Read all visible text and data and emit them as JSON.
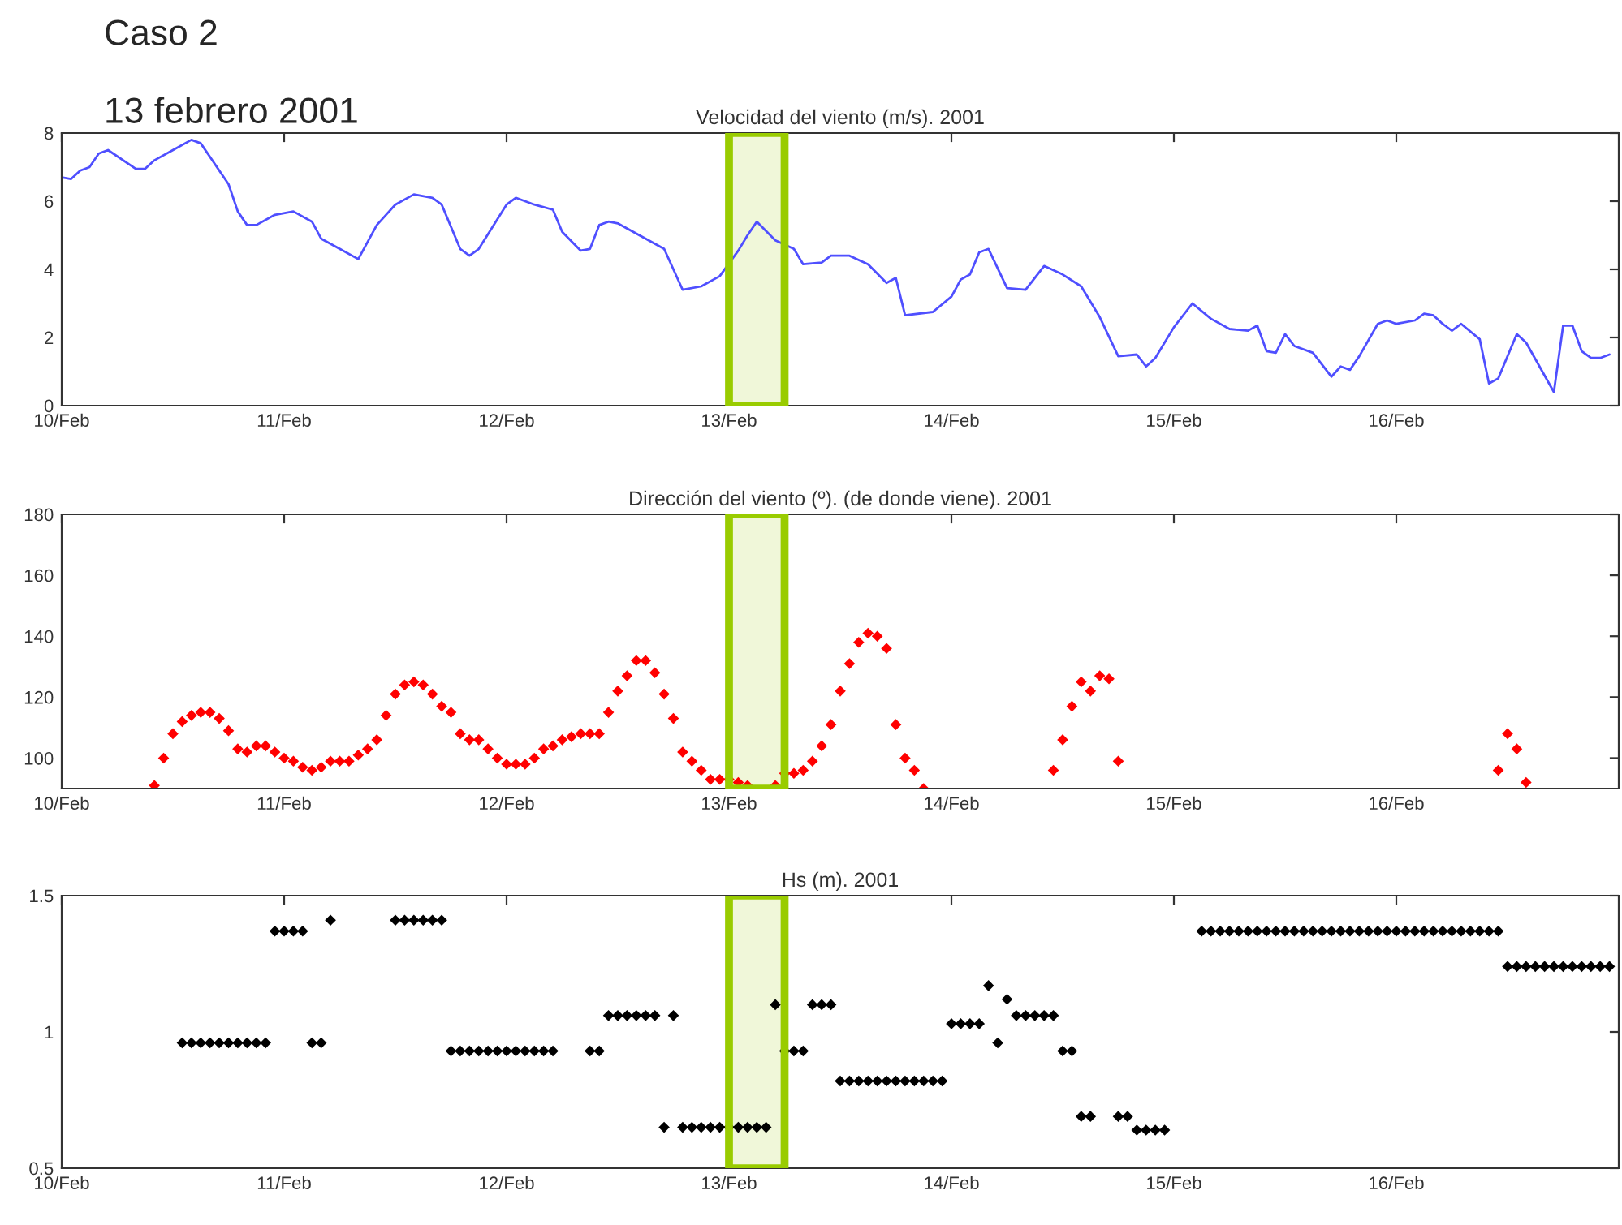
{
  "chart_data": [
    {
      "type": "line",
      "title": "Velocidad del viento (m/s). 2001",
      "annotations": [
        "Caso 2",
        "13 febrero 2001"
      ],
      "x": [
        "2001-02-10T00:00",
        "2001-02-10T01:00",
        "2001-02-10T02:00",
        "2001-02-10T03:00",
        "2001-02-10T04:00",
        "2001-02-10T05:00",
        "2001-02-10T08:00",
        "2001-02-10T09:00",
        "2001-02-10T10:00",
        "2001-02-10T12:00",
        "2001-02-10T14:00",
        "2001-02-10T15:00",
        "2001-02-10T18:00",
        "2001-02-10T19:00",
        "2001-02-10T20:00",
        "2001-02-10T21:00",
        "2001-02-10T23:00",
        "2001-02-11T01:00",
        "2001-02-11T03:00",
        "2001-02-11T04:00",
        "2001-02-11T06:00",
        "2001-02-11T08:00",
        "2001-02-11T10:00",
        "2001-02-11T12:00",
        "2001-02-11T14:00",
        "2001-02-11T16:00",
        "2001-02-11T17:00",
        "2001-02-11T19:00",
        "2001-02-11T20:00",
        "2001-02-11T21:00",
        "2001-02-12T00:00",
        "2001-02-12T01:00",
        "2001-02-12T03:00",
        "2001-02-12T05:00",
        "2001-02-12T06:00",
        "2001-02-12T08:00",
        "2001-02-12T09:00",
        "2001-02-12T10:00",
        "2001-02-12T11:00",
        "2001-02-12T12:00",
        "2001-02-12T17:00",
        "2001-02-12T19:00",
        "2001-02-12T21:00",
        "2001-02-12T23:00",
        "2001-02-13T01:00",
        "2001-02-13T02:00",
        "2001-02-13T03:00",
        "2001-02-13T05:00",
        "2001-02-13T07:00",
        "2001-02-13T08:00",
        "2001-02-13T10:00",
        "2001-02-13T11:00",
        "2001-02-13T13:00",
        "2001-02-13T15:00",
        "2001-02-13T17:00",
        "2001-02-13T18:00",
        "2001-02-13T19:00",
        "2001-02-13T22:00",
        "2001-02-14T00:00",
        "2001-02-14T01:00",
        "2001-02-14T02:00",
        "2001-02-14T03:00",
        "2001-02-14T04:00",
        "2001-02-14T06:00",
        "2001-02-14T08:00",
        "2001-02-14T10:00",
        "2001-02-14T12:00",
        "2001-02-14T14:00",
        "2001-02-14T16:00",
        "2001-02-14T18:00",
        "2001-02-14T20:00",
        "2001-02-14T21:00",
        "2001-02-14T22:00",
        "2001-02-15T00:00",
        "2001-02-15T02:00",
        "2001-02-15T04:00",
        "2001-02-15T06:00",
        "2001-02-15T08:00",
        "2001-02-15T09:00",
        "2001-02-15T10:00",
        "2001-02-15T11:00",
        "2001-02-15T12:00",
        "2001-02-15T13:00",
        "2001-02-15T15:00",
        "2001-02-15T16:00",
        "2001-02-15T17:00",
        "2001-02-15T18:00",
        "2001-02-15T19:00",
        "2001-02-15T20:00",
        "2001-02-15T22:00",
        "2001-02-15T23:00",
        "2001-02-16T00:00",
        "2001-02-16T02:00",
        "2001-02-16T03:00",
        "2001-02-16T04:00",
        "2001-02-16T05:00",
        "2001-02-16T06:00",
        "2001-02-16T07:00",
        "2001-02-16T09:00",
        "2001-02-16T10:00",
        "2001-02-16T11:00",
        "2001-02-16T13:00",
        "2001-02-16T14:00",
        "2001-02-16T17:00",
        "2001-02-16T18:00",
        "2001-02-16T19:00",
        "2001-02-16T20:00",
        "2001-02-16T21:00",
        "2001-02-16T22:00",
        "2001-02-16T23:00"
      ],
      "series": [
        {
          "color": "#4f4fff",
          "values": [
            6.7,
            6.65,
            6.9,
            7.0,
            7.4,
            7.5,
            6.95,
            6.95,
            7.2,
            7.5,
            7.8,
            7.7,
            6.5,
            5.7,
            5.3,
            5.3,
            5.6,
            5.7,
            5.4,
            4.9,
            4.6,
            4.3,
            5.3,
            5.9,
            6.2,
            6.1,
            5.9,
            4.6,
            4.4,
            4.6,
            5.9,
            6.1,
            5.9,
            5.75,
            5.1,
            4.55,
            4.6,
            5.3,
            5.4,
            5.35,
            4.6,
            3.4,
            3.5,
            3.8,
            4.55,
            5.0,
            5.4,
            4.85,
            4.6,
            4.15,
            4.2,
            4.4,
            4.4,
            4.15,
            3.6,
            3.75,
            2.65,
            2.75,
            3.2,
            3.7,
            3.85,
            4.5,
            4.6,
            3.45,
            3.4,
            4.1,
            3.85,
            3.5,
            2.6,
            1.45,
            1.5,
            1.15,
            1.4,
            2.3,
            3.0,
            2.55,
            2.25,
            2.2,
            2.35,
            1.6,
            1.55,
            2.1,
            1.75,
            1.55,
            1.2,
            0.85,
            1.15,
            1.05,
            1.45,
            2.4,
            2.5,
            2.4,
            2.5,
            2.7,
            2.65,
            2.4,
            2.2,
            2.4,
            1.95,
            0.65,
            0.8,
            2.1,
            1.85,
            0.4,
            2.35,
            2.35,
            1.6,
            1.4,
            1.4,
            1.5
          ]
        }
      ],
      "xlim": [
        "2001-02-10T00:00",
        "2001-02-17T00:00"
      ],
      "xticks": [
        {
          "value": "2001-02-10",
          "label": "10/Feb"
        },
        {
          "value": "2001-02-11",
          "label": "11/Feb"
        },
        {
          "value": "2001-02-12",
          "label": "12/Feb"
        },
        {
          "value": "2001-02-13",
          "label": "13/Feb"
        },
        {
          "value": "2001-02-14",
          "label": "14/Feb"
        },
        {
          "value": "2001-02-15",
          "label": "15/Feb"
        },
        {
          "value": "2001-02-16",
          "label": "16/Feb"
        }
      ],
      "ylim": [
        0,
        8
      ],
      "yticks": [
        0,
        2,
        4,
        6,
        8
      ],
      "grid": false,
      "legend": false,
      "line_style": "solid",
      "bands": [
        {
          "axis": "x",
          "from": "2001-02-13T00:00",
          "to": "2001-02-13T06:00",
          "color": "#99cc00"
        }
      ]
    },
    {
      "type": "scatter",
      "title": "Dirección del viento (º). (de donde viene). 2001",
      "marker": "diamond",
      "x": [
        "2001-02-10T10:00",
        "2001-02-10T11:00",
        "2001-02-10T12:00",
        "2001-02-10T13:00",
        "2001-02-10T14:00",
        "2001-02-10T15:00",
        "2001-02-10T16:00",
        "2001-02-10T17:00",
        "2001-02-10T18:00",
        "2001-02-10T19:00",
        "2001-02-10T20:00",
        "2001-02-10T21:00",
        "2001-02-10T22:00",
        "2001-02-10T23:00",
        "2001-02-11T00:00",
        "2001-02-11T01:00",
        "2001-02-11T02:00",
        "2001-02-11T03:00",
        "2001-02-11T04:00",
        "2001-02-11T05:00",
        "2001-02-11T06:00",
        "2001-02-11T07:00",
        "2001-02-11T08:00",
        "2001-02-11T09:00",
        "2001-02-11T10:00",
        "2001-02-11T11:00",
        "2001-02-11T12:00",
        "2001-02-11T13:00",
        "2001-02-11T14:00",
        "2001-02-11T15:00",
        "2001-02-11T16:00",
        "2001-02-11T17:00",
        "2001-02-11T18:00",
        "2001-02-11T19:00",
        "2001-02-11T20:00",
        "2001-02-11T21:00",
        "2001-02-11T22:00",
        "2001-02-11T23:00",
        "2001-02-12T00:00",
        "2001-02-12T01:00",
        "2001-02-12T02:00",
        "2001-02-12T03:00",
        "2001-02-12T04:00",
        "2001-02-12T05:00",
        "2001-02-12T06:00",
        "2001-02-12T07:00",
        "2001-02-12T08:00",
        "2001-02-12T09:00",
        "2001-02-12T10:00",
        "2001-02-12T11:00",
        "2001-02-12T12:00",
        "2001-02-12T13:00",
        "2001-02-12T14:00",
        "2001-02-12T15:00",
        "2001-02-12T16:00",
        "2001-02-12T17:00",
        "2001-02-12T18:00",
        "2001-02-12T19:00",
        "2001-02-12T20:00",
        "2001-02-12T21:00",
        "2001-02-12T22:00",
        "2001-02-12T23:00",
        "2001-02-13T00:00",
        "2001-02-13T01:00",
        "2001-02-13T02:00",
        "2001-02-13T05:00",
        "2001-02-13T06:00",
        "2001-02-13T07:00",
        "2001-02-13T08:00",
        "2001-02-13T09:00",
        "2001-02-13T10:00",
        "2001-02-13T11:00",
        "2001-02-13T12:00",
        "2001-02-13T13:00",
        "2001-02-13T14:00",
        "2001-02-13T15:00",
        "2001-02-13T16:00",
        "2001-02-13T17:00",
        "2001-02-13T18:00",
        "2001-02-13T19:00",
        "2001-02-13T20:00",
        "2001-02-13T21:00",
        "2001-02-14T11:00",
        "2001-02-14T12:00",
        "2001-02-14T13:00",
        "2001-02-14T14:00",
        "2001-02-14T15:00",
        "2001-02-14T16:00",
        "2001-02-14T17:00",
        "2001-02-14T18:00",
        "2001-02-16T11:00",
        "2001-02-16T12:00",
        "2001-02-16T13:00",
        "2001-02-16T14:00"
      ],
      "series": [
        {
          "color": "#ff0000",
          "values": [
            91,
            100,
            108,
            112,
            114,
            115,
            115,
            113,
            109,
            103,
            102,
            104,
            104,
            102,
            100,
            99,
            97,
            96,
            97,
            99,
            99,
            99,
            101,
            103,
            106,
            114,
            121,
            124,
            125,
            124,
            121,
            117,
            115,
            108,
            106,
            106,
            103,
            100,
            98,
            98,
            98,
            100,
            103,
            104,
            106,
            107,
            108,
            108,
            108,
            115,
            122,
            127,
            132,
            132,
            128,
            121,
            113,
            102,
            99,
            96,
            93,
            93,
            93,
            92,
            91,
            91,
            95,
            95,
            96,
            99,
            104,
            111,
            122,
            131,
            138,
            141,
            140,
            136,
            111,
            100,
            96,
            90,
            96,
            106,
            117,
            125,
            122,
            127,
            126,
            99,
            96,
            108,
            103,
            92
          ]
        }
      ],
      "xlim": [
        "2001-02-10T00:00",
        "2001-02-17T00:00"
      ],
      "xticks": [
        {
          "value": "2001-02-10",
          "label": "10/Feb"
        },
        {
          "value": "2001-02-11",
          "label": "11/Feb"
        },
        {
          "value": "2001-02-12",
          "label": "12/Feb"
        },
        {
          "value": "2001-02-13",
          "label": "13/Feb"
        },
        {
          "value": "2001-02-14",
          "label": "14/Feb"
        },
        {
          "value": "2001-02-15",
          "label": "15/Feb"
        },
        {
          "value": "2001-02-16",
          "label": "16/Feb"
        }
      ],
      "ylim": [
        90,
        180
      ],
      "yticks": [
        100,
        120,
        140,
        160,
        180
      ],
      "grid": false,
      "legend": false,
      "bands": [
        {
          "axis": "x",
          "from": "2001-02-13T00:00",
          "to": "2001-02-13T06:00",
          "color": "#99cc00"
        }
      ]
    },
    {
      "type": "scatter",
      "title": "Hs (m). 2001",
      "marker": "diamond",
      "x": [
        "2001-02-10T13:00",
        "2001-02-10T14:00",
        "2001-02-10T15:00",
        "2001-02-10T16:00",
        "2001-02-10T17:00",
        "2001-02-10T18:00",
        "2001-02-10T19:00",
        "2001-02-10T20:00",
        "2001-02-10T21:00",
        "2001-02-10T22:00",
        "2001-02-10T23:00",
        "2001-02-11T00:00",
        "2001-02-11T01:00",
        "2001-02-11T02:00",
        "2001-02-11T03:00",
        "2001-02-11T04:00",
        "2001-02-11T05:00",
        "2001-02-11T12:00",
        "2001-02-11T13:00",
        "2001-02-11T14:00",
        "2001-02-11T15:00",
        "2001-02-11T16:00",
        "2001-02-11T17:00",
        "2001-02-11T18:00",
        "2001-02-11T19:00",
        "2001-02-11T20:00",
        "2001-02-11T21:00",
        "2001-02-11T22:00",
        "2001-02-11T23:00",
        "2001-02-12T00:00",
        "2001-02-12T01:00",
        "2001-02-12T02:00",
        "2001-02-12T03:00",
        "2001-02-12T04:00",
        "2001-02-12T05:00",
        "2001-02-12T09:00",
        "2001-02-12T10:00",
        "2001-02-12T11:00",
        "2001-02-12T12:00",
        "2001-02-12T13:00",
        "2001-02-12T14:00",
        "2001-02-12T15:00",
        "2001-02-12T16:00",
        "2001-02-12T17:00",
        "2001-02-12T18:00",
        "2001-02-12T19:00",
        "2001-02-12T20:00",
        "2001-02-12T21:00",
        "2001-02-12T22:00",
        "2001-02-12T23:00",
        "2001-02-13T00:00",
        "2001-02-13T01:00",
        "2001-02-13T02:00",
        "2001-02-13T03:00",
        "2001-02-13T04:00",
        "2001-02-13T05:00",
        "2001-02-13T06:00",
        "2001-02-13T07:00",
        "2001-02-13T08:00",
        "2001-02-13T09:00",
        "2001-02-13T10:00",
        "2001-02-13T11:00",
        "2001-02-13T12:00",
        "2001-02-13T13:00",
        "2001-02-13T14:00",
        "2001-02-13T15:00",
        "2001-02-13T16:00",
        "2001-02-13T17:00",
        "2001-02-13T18:00",
        "2001-02-13T19:00",
        "2001-02-13T20:00",
        "2001-02-13T21:00",
        "2001-02-13T22:00",
        "2001-02-13T23:00",
        "2001-02-14T00:00",
        "2001-02-14T01:00",
        "2001-02-14T02:00",
        "2001-02-14T03:00",
        "2001-02-14T04:00",
        "2001-02-14T05:00",
        "2001-02-14T06:00",
        "2001-02-14T07:00",
        "2001-02-14T08:00",
        "2001-02-14T09:00",
        "2001-02-14T10:00",
        "2001-02-14T11:00",
        "2001-02-14T12:00",
        "2001-02-14T13:00",
        "2001-02-14T14:00",
        "2001-02-14T15:00",
        "2001-02-14T18:00",
        "2001-02-14T19:00",
        "2001-02-14T20:00",
        "2001-02-14T21:00",
        "2001-02-14T22:00",
        "2001-02-14T23:00",
        "2001-02-15T03:00",
        "2001-02-15T04:00",
        "2001-02-15T05:00",
        "2001-02-15T06:00",
        "2001-02-15T07:00",
        "2001-02-15T08:00",
        "2001-02-15T09:00",
        "2001-02-15T10:00",
        "2001-02-15T11:00",
        "2001-02-15T12:00",
        "2001-02-15T13:00",
        "2001-02-15T14:00",
        "2001-02-15T15:00",
        "2001-02-15T16:00",
        "2001-02-15T17:00",
        "2001-02-15T18:00",
        "2001-02-15T19:00",
        "2001-02-15T20:00",
        "2001-02-15T21:00",
        "2001-02-15T22:00",
        "2001-02-15T23:00",
        "2001-02-16T00:00",
        "2001-02-16T01:00",
        "2001-02-16T02:00",
        "2001-02-16T03:00",
        "2001-02-16T04:00",
        "2001-02-16T05:00",
        "2001-02-16T06:00",
        "2001-02-16T07:00",
        "2001-02-16T08:00",
        "2001-02-16T09:00",
        "2001-02-16T10:00",
        "2001-02-16T11:00",
        "2001-02-16T12:00",
        "2001-02-16T13:00",
        "2001-02-16T14:00",
        "2001-02-16T15:00",
        "2001-02-16T16:00",
        "2001-02-16T17:00",
        "2001-02-16T18:00",
        "2001-02-16T19:00",
        "2001-02-16T20:00",
        "2001-02-16T21:00",
        "2001-02-16T22:00",
        "2001-02-16T23:00"
      ],
      "series": [
        {
          "color": "#000000",
          "values": [
            0.96,
            0.96,
            0.96,
            0.96,
            0.96,
            0.96,
            0.96,
            0.96,
            0.96,
            0.96,
            1.37,
            1.37,
            1.37,
            1.37,
            0.96,
            0.96,
            1.41,
            1.41,
            1.41,
            1.41,
            1.41,
            1.41,
            1.41,
            0.93,
            0.93,
            0.93,
            0.93,
            0.93,
            0.93,
            0.93,
            0.93,
            0.93,
            0.93,
            0.93,
            0.93,
            0.93,
            0.93,
            1.06,
            1.06,
            1.06,
            1.06,
            1.06,
            1.06,
            0.65,
            1.06,
            0.65,
            0.65,
            0.65,
            0.65,
            0.65,
            0.65,
            0.65,
            0.65,
            0.65,
            0.65,
            1.1,
            0.93,
            0.93,
            0.93,
            1.1,
            1.1,
            1.1,
            0.82,
            0.82,
            0.82,
            0.82,
            0.82,
            0.82,
            0.82,
            0.82,
            0.82,
            0.82,
            0.82,
            0.82,
            1.03,
            1.03,
            1.03,
            1.03,
            1.17,
            0.96,
            1.12,
            1.06,
            1.06,
            1.06,
            1.06,
            1.06,
            0.93,
            0.93,
            0.69,
            0.69,
            0.69,
            0.69,
            0.64,
            0.64,
            0.64,
            0.64,
            1.37,
            1.37,
            1.37,
            1.37,
            1.37,
            1.37,
            1.37,
            1.37,
            1.37,
            1.37,
            1.37,
            1.37,
            1.37,
            1.37,
            1.37,
            1.37,
            1.37,
            1.37,
            1.37,
            1.37,
            1.37,
            1.37,
            1.37,
            1.37,
            1.37,
            1.37,
            1.37,
            1.37,
            1.37,
            1.37,
            1.37,
            1.37,
            1.37,
            1.24,
            1.24,
            1.24,
            1.24,
            1.24,
            1.24,
            1.24,
            1.24,
            1.24,
            1.24,
            1.24,
            1.24
          ]
        }
      ],
      "xlim": [
        "2001-02-10T00:00",
        "2001-02-17T00:00"
      ],
      "xticks": [
        {
          "value": "2001-02-10",
          "label": "10/Feb"
        },
        {
          "value": "2001-02-11",
          "label": "11/Feb"
        },
        {
          "value": "2001-02-12",
          "label": "12/Feb"
        },
        {
          "value": "2001-02-13",
          "label": "13/Feb"
        },
        {
          "value": "2001-02-14",
          "label": "14/Feb"
        },
        {
          "value": "2001-02-15",
          "label": "15/Feb"
        },
        {
          "value": "2001-02-16",
          "label": "16/Feb"
        }
      ],
      "ylim": [
        0.5,
        1.5
      ],
      "yticks": [
        0.5,
        1,
        1.5
      ],
      "grid": false,
      "legend": false,
      "bands": [
        {
          "axis": "x",
          "from": "2001-02-13T00:00",
          "to": "2001-02-13T06:00",
          "color": "#99cc00"
        }
      ]
    }
  ]
}
